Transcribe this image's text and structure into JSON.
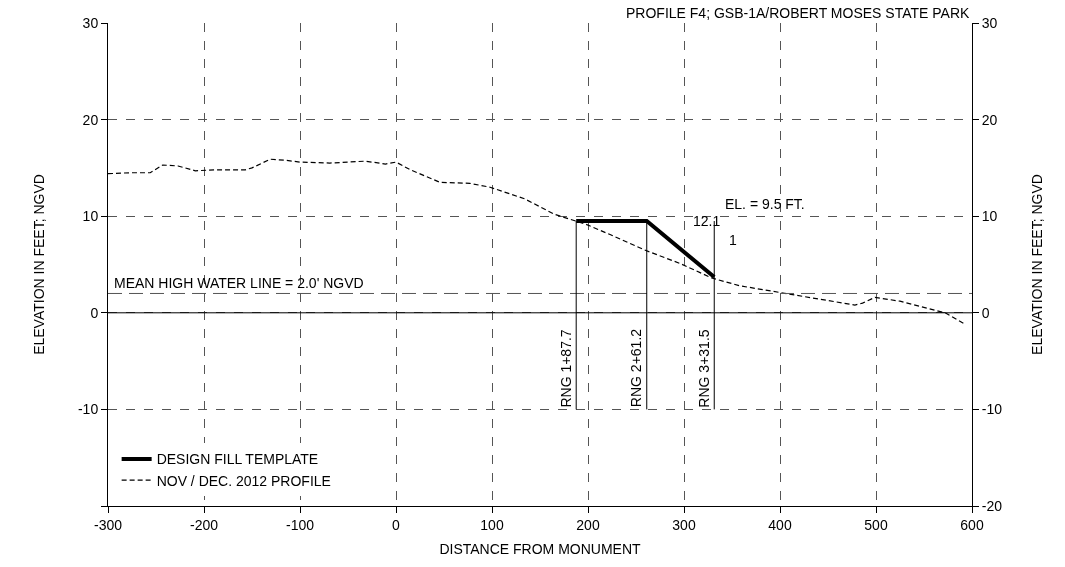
{
  "chart_data": {
    "type": "line",
    "title": "PROFILE F4; GSB-1A/ROBERT MOSES STATE PARK",
    "xlabel": "DISTANCE FROM MONUMENT",
    "ylabel": "ELEVATION IN FEET; NGVD",
    "y2label": "ELEVATION IN FEET; NGVD",
    "series": [
      {
        "name": "DESIGN FILL TEMPLATE",
        "color": "#000000",
        "line_style": "solid",
        "x": [
          187.7,
          261.2,
          331.5
        ],
        "values": [
          9.5,
          9.5,
          3.7
        ]
      },
      {
        "name": "NOV / DEC. 2012 PROFILE",
        "color": "#000000",
        "line_style": "dashed",
        "x": [
          -300,
          -277,
          -256,
          -243,
          -227,
          -209,
          -189,
          -157,
          -150,
          -131,
          -116,
          -100,
          -69,
          -32,
          -11,
          0,
          15,
          46,
          77,
          98,
          134,
          165,
          197,
          223,
          259,
          296,
          329,
          358,
          400,
          442,
          478,
          486,
          499,
          525,
          572,
          593
        ],
        "values": [
          14.4,
          14.5,
          14.5,
          15.3,
          15.2,
          14.7,
          14.8,
          14.8,
          15.0,
          15.9,
          15.8,
          15.6,
          15.5,
          15.7,
          15.4,
          15.6,
          14.8,
          13.5,
          13.4,
          13.0,
          11.8,
          10.2,
          9.2,
          8.1,
          6.5,
          5.1,
          3.6,
          2.8,
          2.1,
          1.4,
          0.8,
          1.0,
          1.6,
          1.2,
          0.0,
          -1.2
        ]
      }
    ],
    "xlim": [
      -300,
      600
    ],
    "xticks": [
      -300,
      -200,
      -100,
      0,
      100,
      200,
      300,
      400,
      500,
      600
    ],
    "ylim": [
      -20,
      30
    ],
    "yticks": [
      {
        "value": -20,
        "label": null
      },
      -10,
      0,
      10,
      20,
      30
    ],
    "y2lim": [
      -20,
      30
    ],
    "y2ticks": [
      -20,
      -10,
      0,
      10,
      20,
      30
    ],
    "grid": true,
    "legend": "bottom left",
    "marker": "none",
    "ref_lines": [
      {
        "axis": "y",
        "value": 0,
        "line_style": "solid",
        "color": "#000000"
      },
      {
        "axis": "y",
        "value": 2.0,
        "label": "MEAN HIGH WATER LINE = 2.0' NGVD",
        "line_style": "dashed",
        "color": "#555555"
      },
      {
        "axis": "x",
        "value": 187.7,
        "label": "RNG 1+87.7",
        "color": "#000000"
      },
      {
        "axis": "x",
        "value": 261.2,
        "label": "RNG 2+61.2",
        "color": "#000000"
      },
      {
        "axis": "x",
        "value": 331.5,
        "label": "RNG 3+31.5",
        "color": "#000000"
      }
    ],
    "annotations": [
      "EL. = 9.5 FT.",
      "12.1",
      "1"
    ]
  }
}
